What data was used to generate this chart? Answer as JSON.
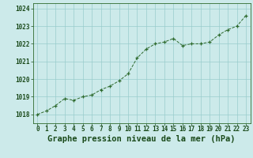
{
  "x": [
    0,
    1,
    2,
    3,
    4,
    5,
    6,
    7,
    8,
    9,
    10,
    11,
    12,
    13,
    14,
    15,
    16,
    17,
    18,
    19,
    20,
    21,
    22,
    23
  ],
  "y": [
    1018.0,
    1018.2,
    1018.5,
    1018.9,
    1018.8,
    1019.0,
    1019.1,
    1019.4,
    1019.6,
    1019.9,
    1020.3,
    1021.2,
    1021.7,
    1022.0,
    1022.1,
    1022.3,
    1021.9,
    1022.0,
    1022.0,
    1022.1,
    1022.5,
    1022.8,
    1023.0,
    1023.6
  ],
  "line_color": "#2d6a2d",
  "marker": "+",
  "bg_color": "#cceaea",
  "grid_color": "#99cccc",
  "xlabel": "Graphe pression niveau de la mer (hPa)",
  "xlabel_color": "#1a4a1a",
  "ylim": [
    1017.5,
    1024.3
  ],
  "yticks": [
    1018,
    1019,
    1020,
    1021,
    1022,
    1023,
    1024
  ],
  "xticks": [
    0,
    1,
    2,
    3,
    4,
    5,
    6,
    7,
    8,
    9,
    10,
    11,
    12,
    13,
    14,
    15,
    16,
    17,
    18,
    19,
    20,
    21,
    22,
    23
  ],
  "tick_color": "#1a4a1a",
  "tick_fontsize": 5.5,
  "xlabel_fontsize": 7.5,
  "spine_color": "#2d6a2d"
}
